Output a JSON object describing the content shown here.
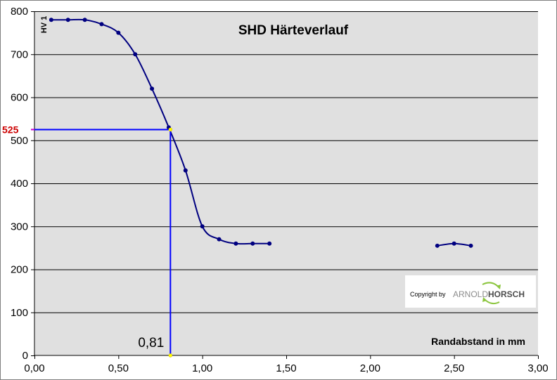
{
  "chart_data": {
    "type": "line",
    "title": "SHD Härteverlauf",
    "ylabel": "HV 1",
    "xlabel": "Randabstand in mm",
    "xlim": [
      0,
      3
    ],
    "ylim": [
      0,
      800
    ],
    "x_ticks": [
      "0,00",
      "0,50",
      "1,00",
      "1,50",
      "2,00",
      "2,50",
      "3,00"
    ],
    "x_tick_values": [
      0,
      0.5,
      1.0,
      1.5,
      2.0,
      2.5,
      3.0
    ],
    "y_ticks": [
      "0",
      "100",
      "200",
      "300",
      "400",
      "500",
      "600",
      "700",
      "800"
    ],
    "y_tick_values": [
      0,
      100,
      200,
      300,
      400,
      500,
      600,
      700,
      800
    ],
    "grid": "horizontal",
    "series": [
      {
        "x": [
          0.1,
          0.2,
          0.3,
          0.4,
          0.5,
          0.6,
          0.7,
          0.8,
          0.9,
          1.0,
          1.1,
          1.2,
          1.3,
          1.4
        ],
        "y": [
          780,
          780,
          780,
          770,
          750,
          700,
          620,
          530,
          430,
          300,
          270,
          260,
          260,
          260
        ]
      },
      {
        "x": [
          2.4,
          2.5,
          2.6
        ],
        "y": [
          255,
          260,
          255
        ]
      }
    ],
    "reference": {
      "y_value": 525,
      "x_value": 0.81,
      "y_label": "525",
      "x_label": "0,81"
    },
    "colors": {
      "series": "#000080",
      "reference": "#0000ff",
      "reference_y_label": "#cc0000",
      "plot_background": "#e0e0e0"
    }
  },
  "copyright": {
    "prefix": "Copyright by",
    "brand_part1": "ARNOLD",
    "brand_part2": "HORSCH"
  }
}
